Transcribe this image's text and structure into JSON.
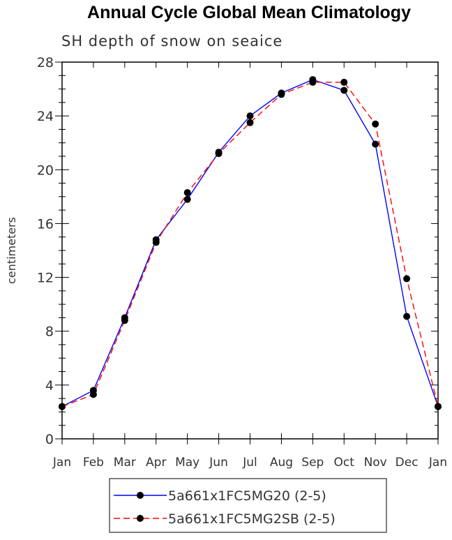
{
  "chart_data": {
    "type": "line",
    "title": "Annual Cycle Global Mean Climatology",
    "subtitle": "SH depth of snow on seaice",
    "xlabel": "",
    "ylabel": "centimeters",
    "categories": [
      "Jan",
      "Feb",
      "Mar",
      "Apr",
      "May",
      "Jun",
      "Jul",
      "Aug",
      "Sep",
      "Oct",
      "Nov",
      "Dec",
      "Jan"
    ],
    "ylim": [
      0,
      28
    ],
    "yticks": [
      "0",
      "4",
      "8",
      "12",
      "16",
      "20",
      "24",
      "28"
    ],
    "grid": false,
    "legend_position": "bottom",
    "series": [
      {
        "name": "5a661x1FC5MG20 (2-5)",
        "color": "#0000ff",
        "line_style": "solid",
        "values": [
          2.4,
          3.6,
          9.0,
          14.8,
          17.8,
          21.3,
          24.0,
          25.7,
          26.7,
          25.9,
          21.9,
          9.1,
          2.4
        ]
      },
      {
        "name": "5a661x1FC5MG2SB (2-5)",
        "color": "#ff0000",
        "line_style": "dashed",
        "values": [
          2.4,
          3.3,
          8.8,
          14.6,
          18.3,
          21.2,
          23.5,
          25.6,
          26.5,
          26.5,
          23.4,
          11.9,
          2.4
        ]
      }
    ]
  }
}
